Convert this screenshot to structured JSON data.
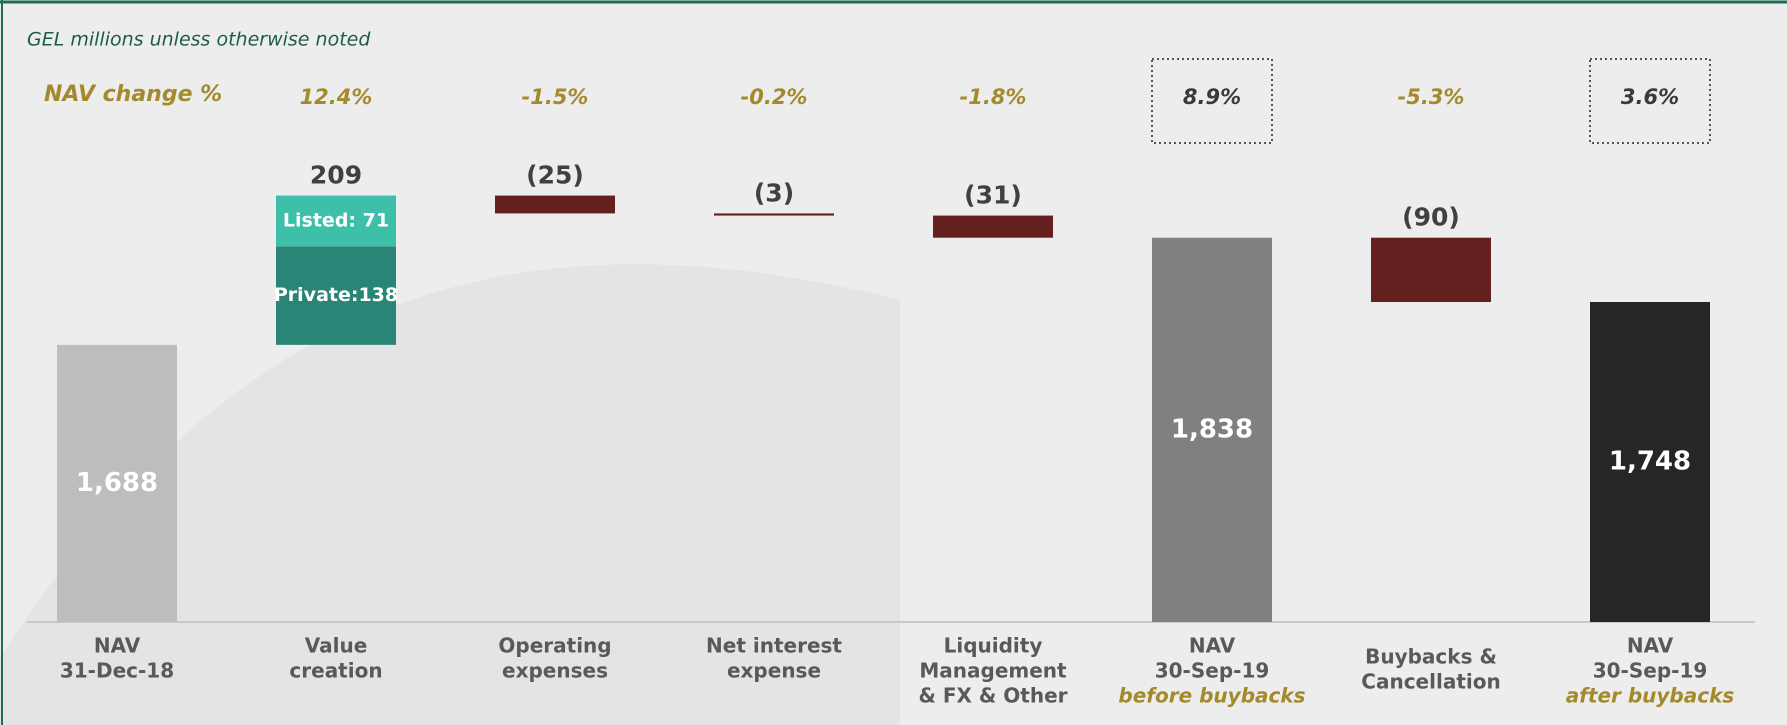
{
  "chart_data": {
    "type": "waterfall",
    "subtitle": "GEL millions unless otherwise noted",
    "change_title": "NAV change %",
    "categories": [
      [
        "NAV",
        "31-Dec-18"
      ],
      [
        "Value",
        "creation"
      ],
      [
        "Operating",
        "expenses"
      ],
      [
        "Net interest",
        "expense"
      ],
      [
        "Liquidity",
        "Management",
        "& FX & Other"
      ],
      [
        "NAV",
        "30-Sep-19"
      ],
      [
        "Buybacks &",
        "Cancellation"
      ],
      [
        "NAV",
        "30-Sep-19"
      ]
    ],
    "category_notes": [
      null,
      null,
      null,
      null,
      null,
      "before buybacks",
      null,
      "after buybacks"
    ],
    "kinds": [
      "total",
      "delta",
      "delta",
      "delta",
      "delta",
      "total",
      "delta",
      "total"
    ],
    "values": [
      1688,
      209,
      -25,
      -3,
      -31,
      1838,
      -90,
      1748
    ],
    "value_labels": [
      "1,688",
      "209",
      "(25)",
      "(3)",
      "(31)",
      "1,838",
      "(90)",
      "1,748"
    ],
    "colors": [
      "#bdbdbd",
      "#2a8577",
      "#64201f",
      "#64201f",
      "#64201f",
      "#808080",
      "#64201f",
      "#262626"
    ],
    "changes": [
      null,
      12.4,
      -1.5,
      -0.2,
      -1.8,
      8.9,
      -5.3,
      3.6
    ],
    "change_labels": [
      null,
      "12.4%",
      "-1.5%",
      "-0.2%",
      "-1.8%",
      "8.9%",
      "-5.3%",
      "3.6%"
    ],
    "breakdown": {
      "index": 1,
      "parts": [
        {
          "label": "Private:138",
          "value": 138,
          "color": "#2a8577"
        },
        {
          "label": "Listed: 71",
          "value": 71,
          "color": "#3dbfaa"
        }
      ]
    },
    "ylim": [
      1300,
      2000
    ]
  }
}
